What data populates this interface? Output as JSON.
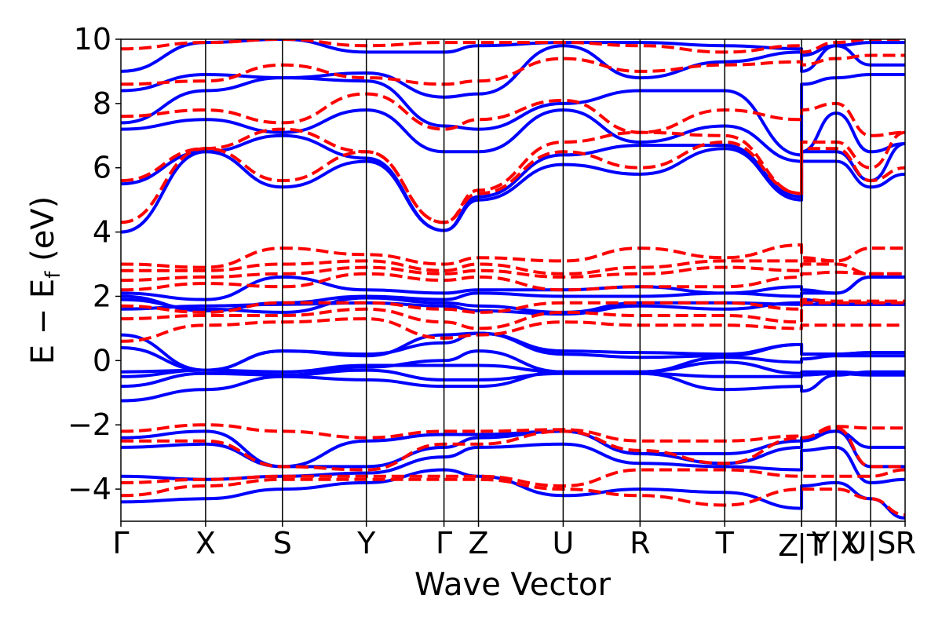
{
  "chart_data": {
    "type": "line",
    "title": "",
    "xlabel": "Wave Vector",
    "ylabel": {
      "prefix": "E − E",
      "subscript": "f",
      "suffix": " (eV)"
    },
    "ylim": [
      -5,
      10
    ],
    "yticks": [
      {
        "value": -4,
        "label": "−4"
      },
      {
        "value": -2,
        "label": "−2"
      },
      {
        "value": 0,
        "label": "0"
      },
      {
        "value": 2,
        "label": "2"
      },
      {
        "value": 4,
        "label": "4"
      },
      {
        "value": 6,
        "label": "6"
      },
      {
        "value": 8,
        "label": "8"
      },
      {
        "value": 10,
        "label": "10"
      }
    ],
    "xlim": [
      0,
      10
    ],
    "high_symmetry_points": [
      {
        "label": "Γ",
        "k": 0.0
      },
      {
        "label": "X",
        "k": 1.08
      },
      {
        "label": "S",
        "k": 2.06
      },
      {
        "label": "Y",
        "k": 3.13
      },
      {
        "label": "Γ",
        "k": 4.12
      },
      {
        "label": "Z",
        "k": 4.56
      },
      {
        "label": "U",
        "k": 5.64
      },
      {
        "label": "R",
        "k": 6.62
      },
      {
        "label": "T",
        "k": 7.7
      },
      {
        "label": "Z",
        "k": 8.68
      },
      {
        "label": "|T",
        "k": 8.68
      },
      {
        "label": "Y|X",
        "k": 9.12
      },
      {
        "label": "U|S",
        "k": 9.56
      },
      {
        "label": "R",
        "k": 10.0
      }
    ],
    "grid": false,
    "legend": "none",
    "series": [
      {
        "style": "solid",
        "color": "#0000ff",
        "bands": [
          [
            -4.4,
            -4.3,
            -4.0,
            -3.8,
            -3.4,
            -3.6,
            -4.2,
            -4.0,
            -4.1,
            -4.6,
            -3.9,
            -3.8,
            -4.3,
            -4.9
          ],
          [
            -3.6,
            -3.7,
            -3.6,
            -3.5,
            -3.0,
            -2.7,
            -2.6,
            -3.2,
            -3.3,
            -3.4,
            -2.8,
            -2.7,
            -3.8,
            -3.7
          ],
          [
            -2.7,
            -2.6,
            -3.3,
            -3.3,
            -2.7,
            -2.4,
            -2.2,
            -2.9,
            -3.2,
            -2.7,
            -2.5,
            -2.2,
            -3.3,
            -3.3
          ],
          [
            -2.4,
            -2.2,
            -3.3,
            -2.5,
            -2.3,
            -2.3,
            -2.2,
            -2.9,
            -2.9,
            -2.5,
            -2.4,
            -2.2,
            -2.7,
            -2.7
          ],
          [
            -1.25,
            -0.9,
            -0.5,
            -0.6,
            -0.8,
            -0.8,
            -0.35,
            -0.4,
            -0.9,
            -0.8,
            -0.95,
            -0.45,
            -0.35,
            -0.35
          ],
          [
            -0.8,
            -0.4,
            -0.45,
            -0.3,
            -0.6,
            -0.6,
            -0.4,
            -0.4,
            -0.5,
            -0.5,
            -0.45,
            -0.4,
            -0.45,
            -0.45
          ],
          [
            -0.5,
            -0.3,
            -0.35,
            -0.15,
            -0.15,
            -0.15,
            -0.35,
            -0.35,
            -0.05,
            -0.4,
            -0.35,
            -0.35,
            -0.4,
            -0.4
          ],
          [
            -0.35,
            -0.3,
            -0.45,
            -0.2,
            0.0,
            0.3,
            -0.35,
            -0.35,
            0.1,
            -0.05,
            0.05,
            0.15,
            0.15,
            0.15
          ],
          [
            0.4,
            -0.3,
            0.3,
            0.2,
            0.55,
            0.85,
            0.2,
            0.1,
            0.15,
            0.5,
            0.2,
            0.2,
            0.25,
            0.25
          ],
          [
            0.8,
            -0.3,
            0.3,
            0.15,
            0.8,
            0.85,
            0.3,
            0.25,
            0.2,
            0.5,
            0.2,
            0.2,
            0.25,
            0.25
          ],
          [
            1.6,
            1.7,
            1.75,
            1.8,
            1.7,
            1.55,
            1.45,
            1.7,
            1.6,
            1.8,
            1.75,
            1.75,
            1.75,
            1.75
          ],
          [
            1.9,
            1.6,
            1.5,
            1.95,
            1.8,
            1.7,
            1.5,
            1.8,
            1.8,
            1.75,
            1.9,
            1.75,
            1.75,
            1.75
          ],
          [
            2.0,
            1.55,
            1.8,
            2.0,
            1.9,
            2.1,
            2.0,
            2.0,
            2.1,
            2.0,
            2.1,
            2.1,
            2.6,
            2.6
          ],
          [
            2.1,
            1.9,
            2.6,
            2.2,
            2.1,
            2.2,
            2.2,
            2.3,
            2.1,
            2.3,
            2.2,
            2.1,
            2.6,
            2.6
          ],
          [
            4.0,
            6.5,
            5.4,
            6.2,
            4.05,
            5.0,
            6.1,
            5.8,
            6.6,
            5.0,
            6.2,
            6.2,
            5.4,
            5.8
          ],
          [
            5.5,
            6.5,
            7.0,
            6.3,
            4.05,
            5.1,
            6.4,
            6.7,
            6.7,
            5.1,
            6.5,
            6.5,
            5.6,
            6.75
          ],
          [
            7.2,
            7.5,
            7.1,
            7.8,
            6.5,
            6.5,
            7.8,
            6.8,
            7.3,
            6.2,
            6.5,
            7.7,
            6.5,
            6.75
          ],
          [
            7.4,
            8.4,
            8.8,
            8.7,
            7.3,
            7.2,
            8.0,
            8.4,
            8.4,
            6.4,
            8.6,
            8.8,
            8.9,
            8.9
          ],
          [
            8.4,
            8.9,
            8.8,
            8.95,
            8.2,
            8.3,
            9.8,
            8.8,
            9.3,
            9.6,
            9.0,
            9.8,
            9.2,
            9.2
          ],
          [
            9.0,
            9.9,
            10.0,
            9.6,
            9.6,
            9.8,
            9.9,
            9.9,
            9.8,
            9.7,
            9.5,
            9.8,
            9.9,
            9.9
          ]
        ]
      },
      {
        "style": "dashed",
        "color": "#ff0000",
        "bands": [
          [
            -4.2,
            -3.9,
            -3.7,
            -3.7,
            -3.7,
            -3.7,
            -4.0,
            -4.2,
            -4.5,
            -4.0,
            -4.0,
            -4.0,
            -4.3,
            -4.8
          ],
          [
            -3.8,
            -3.7,
            -3.6,
            -3.6,
            -3.6,
            -3.6,
            -3.9,
            -3.4,
            -3.4,
            -3.6,
            -3.6,
            -3.6,
            -3.6,
            -3.4
          ],
          [
            -2.5,
            -2.5,
            -3.3,
            -3.4,
            -2.6,
            -2.6,
            -2.2,
            -2.8,
            -3.2,
            -2.4,
            -2.4,
            -2.1,
            -3.3,
            -3.3
          ],
          [
            -2.2,
            -2.0,
            -2.2,
            -2.4,
            -2.2,
            -2.2,
            -2.15,
            -2.5,
            -2.5,
            -2.35,
            -2.4,
            -2.05,
            -2.1,
            -2.1
          ],
          [
            0.6,
            1.1,
            1.2,
            1.3,
            0.7,
            0.8,
            1.2,
            1.1,
            1.1,
            1.0,
            1.1,
            1.1,
            1.1,
            1.1
          ],
          [
            1.3,
            1.4,
            1.4,
            1.6,
            1.2,
            1.0,
            1.5,
            1.4,
            1.4,
            1.2,
            1.8,
            1.8,
            1.8,
            1.8
          ],
          [
            1.7,
            1.5,
            1.8,
            1.8,
            1.6,
            1.5,
            1.8,
            1.8,
            1.8,
            1.6,
            1.9,
            1.85,
            1.85,
            1.85
          ],
          [
            2.2,
            2.4,
            2.3,
            2.7,
            2.5,
            2.6,
            2.2,
            2.3,
            2.3,
            2.6,
            2.7,
            2.75,
            2.7,
            2.7
          ],
          [
            2.5,
            2.6,
            2.7,
            2.9,
            2.7,
            2.8,
            2.6,
            2.7,
            2.9,
            2.8,
            3.0,
            3.0,
            2.7,
            2.7
          ],
          [
            2.8,
            2.8,
            3.0,
            3.1,
            2.8,
            3.0,
            2.7,
            2.9,
            3.1,
            3.1,
            3.1,
            3.1,
            3.5,
            3.5
          ],
          [
            3.0,
            2.9,
            3.5,
            3.3,
            3.0,
            3.2,
            3.1,
            3.5,
            3.2,
            3.6,
            3.2,
            3.1,
            3.5,
            3.5
          ],
          [
            4.3,
            6.6,
            5.6,
            6.5,
            4.3,
            5.2,
            6.5,
            6.0,
            6.8,
            5.2,
            6.6,
            6.6,
            5.6,
            6.0
          ],
          [
            5.6,
            6.6,
            7.2,
            6.5,
            4.3,
            5.3,
            6.8,
            7.1,
            7.0,
            5.2,
            6.8,
            6.8,
            6.0,
            7.1
          ],
          [
            7.6,
            7.8,
            7.4,
            8.3,
            7.2,
            7.5,
            8.1,
            7.1,
            7.8,
            7.5,
            7.8,
            8.0,
            7.0,
            7.1
          ],
          [
            8.6,
            8.7,
            9.2,
            8.8,
            8.6,
            8.7,
            9.4,
            9.0,
            9.2,
            9.3,
            9.2,
            9.4,
            9.5,
            9.5
          ],
          [
            9.7,
            9.9,
            10.0,
            9.8,
            9.9,
            9.9,
            9.9,
            9.8,
            9.6,
            9.8,
            9.6,
            9.9,
            10.0,
            10.0
          ]
        ]
      }
    ]
  }
}
